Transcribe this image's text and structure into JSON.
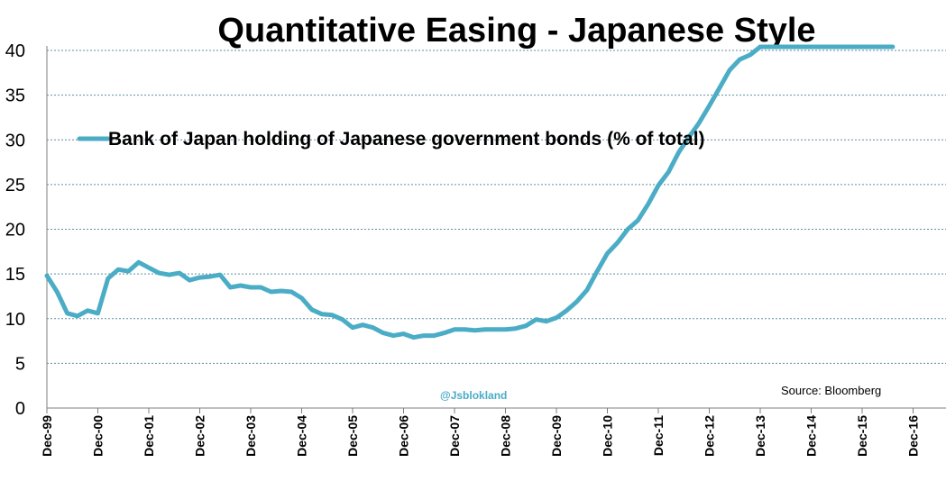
{
  "chart_data": {
    "type": "line",
    "title": "Quantitative Easing - Japanese Style",
    "ylim": [
      0,
      40
    ],
    "yticks": [
      0,
      5,
      10,
      15,
      20,
      25,
      30,
      35,
      40
    ],
    "x_tick_labels": [
      "Dec-99",
      "Dec-00",
      "Dec-01",
      "Dec-02",
      "Dec-03",
      "Dec-04",
      "Dec-05",
      "Dec-06",
      "Dec-07",
      "Dec-08",
      "Dec-09",
      "Dec-10",
      "Dec-11",
      "Dec-12",
      "Dec-13",
      "Dec-14",
      "Dec-15",
      "Dec-16"
    ],
    "x_unit": "years since Dec-99",
    "grid": true,
    "legend_position": "top-left",
    "series": [
      {
        "name": "Bank of Japan holding of Japanese government bonds (% of total)",
        "color": "#4BACC6",
        "x": [
          0,
          0.2,
          0.4,
          0.6,
          0.8,
          1.0,
          1.2,
          1.4,
          1.6,
          1.8,
          2.0,
          2.2,
          2.4,
          2.6,
          2.8,
          3.0,
          3.2,
          3.4,
          3.6,
          3.8,
          4.0,
          4.2,
          4.4,
          4.6,
          4.8,
          5.0,
          5.2,
          5.4,
          5.6,
          5.8,
          6.0,
          6.2,
          6.4,
          6.6,
          6.8,
          7.0,
          7.2,
          7.4,
          7.6,
          7.8,
          8.0,
          8.2,
          8.4,
          8.6,
          8.8,
          9.0,
          9.2,
          9.4,
          9.6,
          9.8,
          10.0,
          10.2,
          10.4,
          10.6,
          10.8,
          11.0,
          11.2,
          11.4,
          11.6,
          11.8,
          12.0,
          12.2,
          12.4,
          12.6,
          12.8,
          13.0,
          13.2,
          13.4,
          13.6,
          13.8,
          14.0,
          14.2,
          14.4,
          14.6,
          14.8,
          15.0,
          15.2,
          15.4,
          15.6,
          15.8,
          16.0,
          16.2,
          16.4,
          16.6
        ],
        "values": [
          14.8,
          13.0,
          10.6,
          10.3,
          10.9,
          10.6,
          14.5,
          15.5,
          15.3,
          16.3,
          15.7,
          15.1,
          14.9,
          15.1,
          14.3,
          14.6,
          14.7,
          14.9,
          13.5,
          13.7,
          13.5,
          13.5,
          13.0,
          13.1,
          13.0,
          12.3,
          11.0,
          10.5,
          10.4,
          9.9,
          9.0,
          9.3,
          9.0,
          8.4,
          8.1,
          8.3,
          7.9,
          8.1,
          8.1,
          8.4,
          8.8,
          8.8,
          8.7,
          8.8,
          8.8,
          8.8,
          8.9,
          9.2,
          9.9,
          9.7,
          10.1,
          10.9,
          11.9,
          13.2,
          15.3,
          17.3,
          18.5,
          20.0,
          21.0,
          22.8,
          24.9,
          26.4,
          28.6,
          30.3,
          31.9,
          33.8,
          35.8,
          37.8,
          39.0,
          39.5,
          40.4,
          40.4,
          40.4,
          40.4,
          40.4,
          40.4,
          40.4,
          40.4,
          40.4,
          40.4,
          40.4,
          40.4,
          40.4,
          40.4
        ]
      }
    ],
    "annotations": {
      "handle": "@Jsblokland",
      "source": "Source: Bloomberg"
    }
  }
}
